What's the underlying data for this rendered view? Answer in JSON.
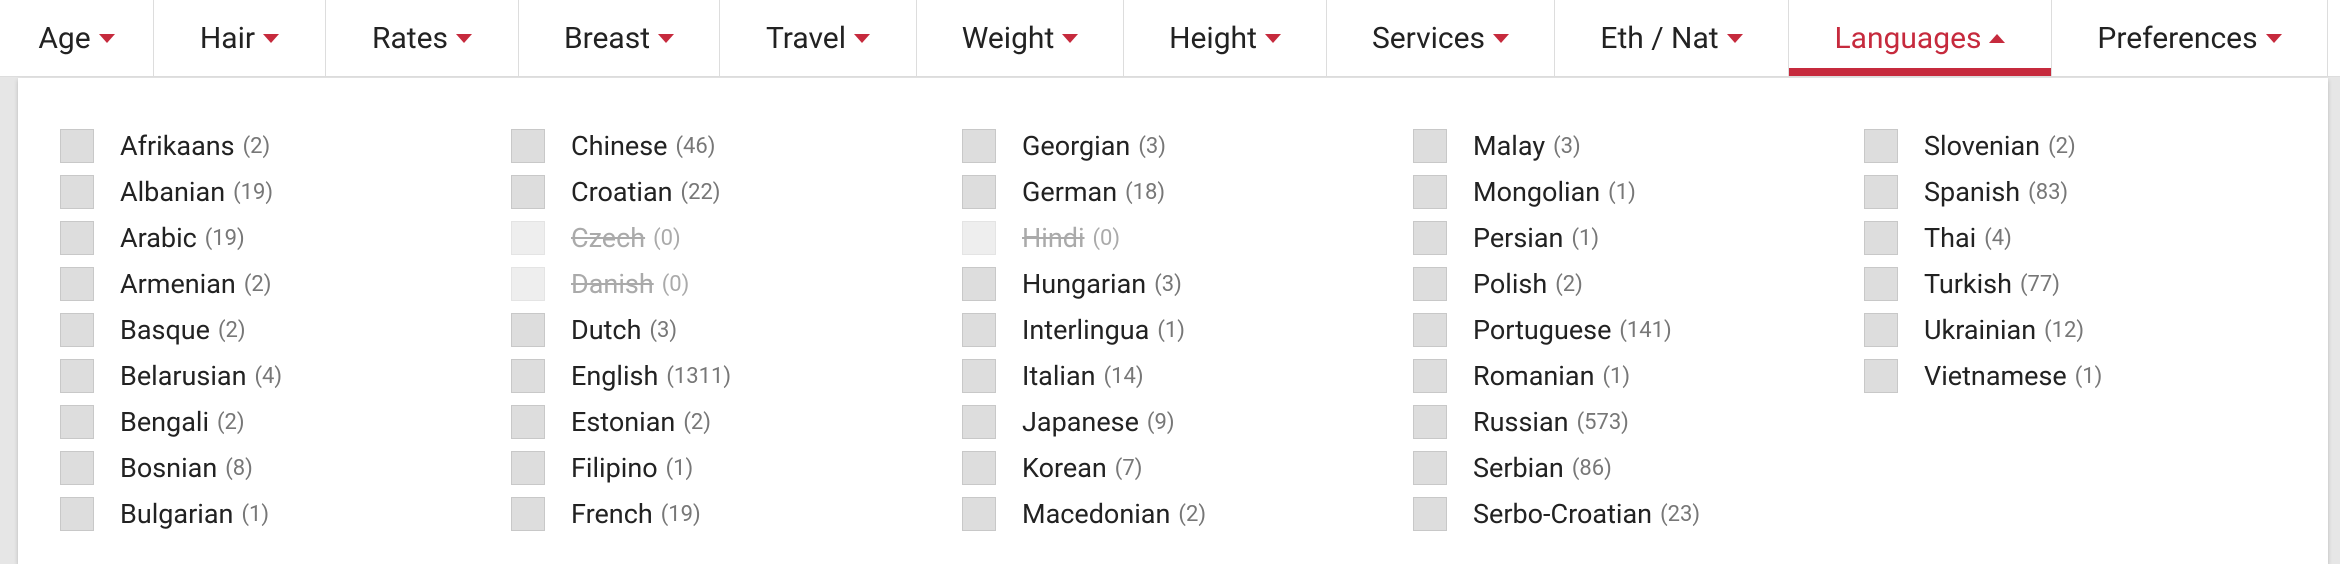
{
  "nav": {
    "tabs": [
      {
        "label": "Age"
      },
      {
        "label": "Hair"
      },
      {
        "label": "Rates"
      },
      {
        "label": "Breast"
      },
      {
        "label": "Travel"
      },
      {
        "label": "Weight"
      },
      {
        "label": "Height"
      },
      {
        "label": "Services"
      },
      {
        "label": "Eth / Nat"
      },
      {
        "label": "Languages",
        "active": true
      },
      {
        "label": "Preferences"
      }
    ]
  },
  "panel": {
    "columns": [
      [
        {
          "label": "Afrikaans",
          "count": "(2)"
        },
        {
          "label": "Albanian",
          "count": "(19)"
        },
        {
          "label": "Arabic",
          "count": "(19)"
        },
        {
          "label": "Armenian",
          "count": "(2)"
        },
        {
          "label": "Basque",
          "count": "(2)"
        },
        {
          "label": "Belarusian",
          "count": "(4)"
        },
        {
          "label": "Bengali",
          "count": "(2)"
        },
        {
          "label": "Bosnian",
          "count": "(8)"
        },
        {
          "label": "Bulgarian",
          "count": "(1)"
        }
      ],
      [
        {
          "label": "Chinese",
          "count": "(46)"
        },
        {
          "label": "Croatian",
          "count": "(22)"
        },
        {
          "label": "Czech",
          "count": "(0)",
          "disabled": true
        },
        {
          "label": "Danish",
          "count": "(0)",
          "disabled": true
        },
        {
          "label": "Dutch",
          "count": "(3)"
        },
        {
          "label": "English",
          "count": "(1311)"
        },
        {
          "label": "Estonian",
          "count": "(2)"
        },
        {
          "label": "Filipino",
          "count": "(1)"
        },
        {
          "label": "French",
          "count": "(19)"
        }
      ],
      [
        {
          "label": "Georgian",
          "count": "(3)"
        },
        {
          "label": "German",
          "count": "(18)"
        },
        {
          "label": "Hindi",
          "count": "(0)",
          "disabled": true
        },
        {
          "label": "Hungarian",
          "count": "(3)"
        },
        {
          "label": "Interlingua",
          "count": "(1)"
        },
        {
          "label": "Italian",
          "count": "(14)"
        },
        {
          "label": "Japanese",
          "count": "(9)"
        },
        {
          "label": "Korean",
          "count": "(7)"
        },
        {
          "label": "Macedonian",
          "count": "(2)"
        }
      ],
      [
        {
          "label": "Malay",
          "count": "(3)"
        },
        {
          "label": "Mongolian",
          "count": "(1)"
        },
        {
          "label": "Persian",
          "count": "(1)"
        },
        {
          "label": "Polish",
          "count": "(2)"
        },
        {
          "label": "Portuguese",
          "count": "(141)"
        },
        {
          "label": "Romanian",
          "count": "(1)"
        },
        {
          "label": "Russian",
          "count": "(573)"
        },
        {
          "label": "Serbian",
          "count": "(86)"
        },
        {
          "label": "Serbo-Croatian",
          "count": "(23)"
        }
      ],
      [
        {
          "label": "Slovenian",
          "count": "(2)"
        },
        {
          "label": "Spanish",
          "count": "(83)"
        },
        {
          "label": "Thai",
          "count": "(4)"
        },
        {
          "label": "Turkish",
          "count": "(77)"
        },
        {
          "label": "Ukrainian",
          "count": "(12)"
        },
        {
          "label": "Vietnamese",
          "count": "(1)"
        }
      ]
    ]
  }
}
